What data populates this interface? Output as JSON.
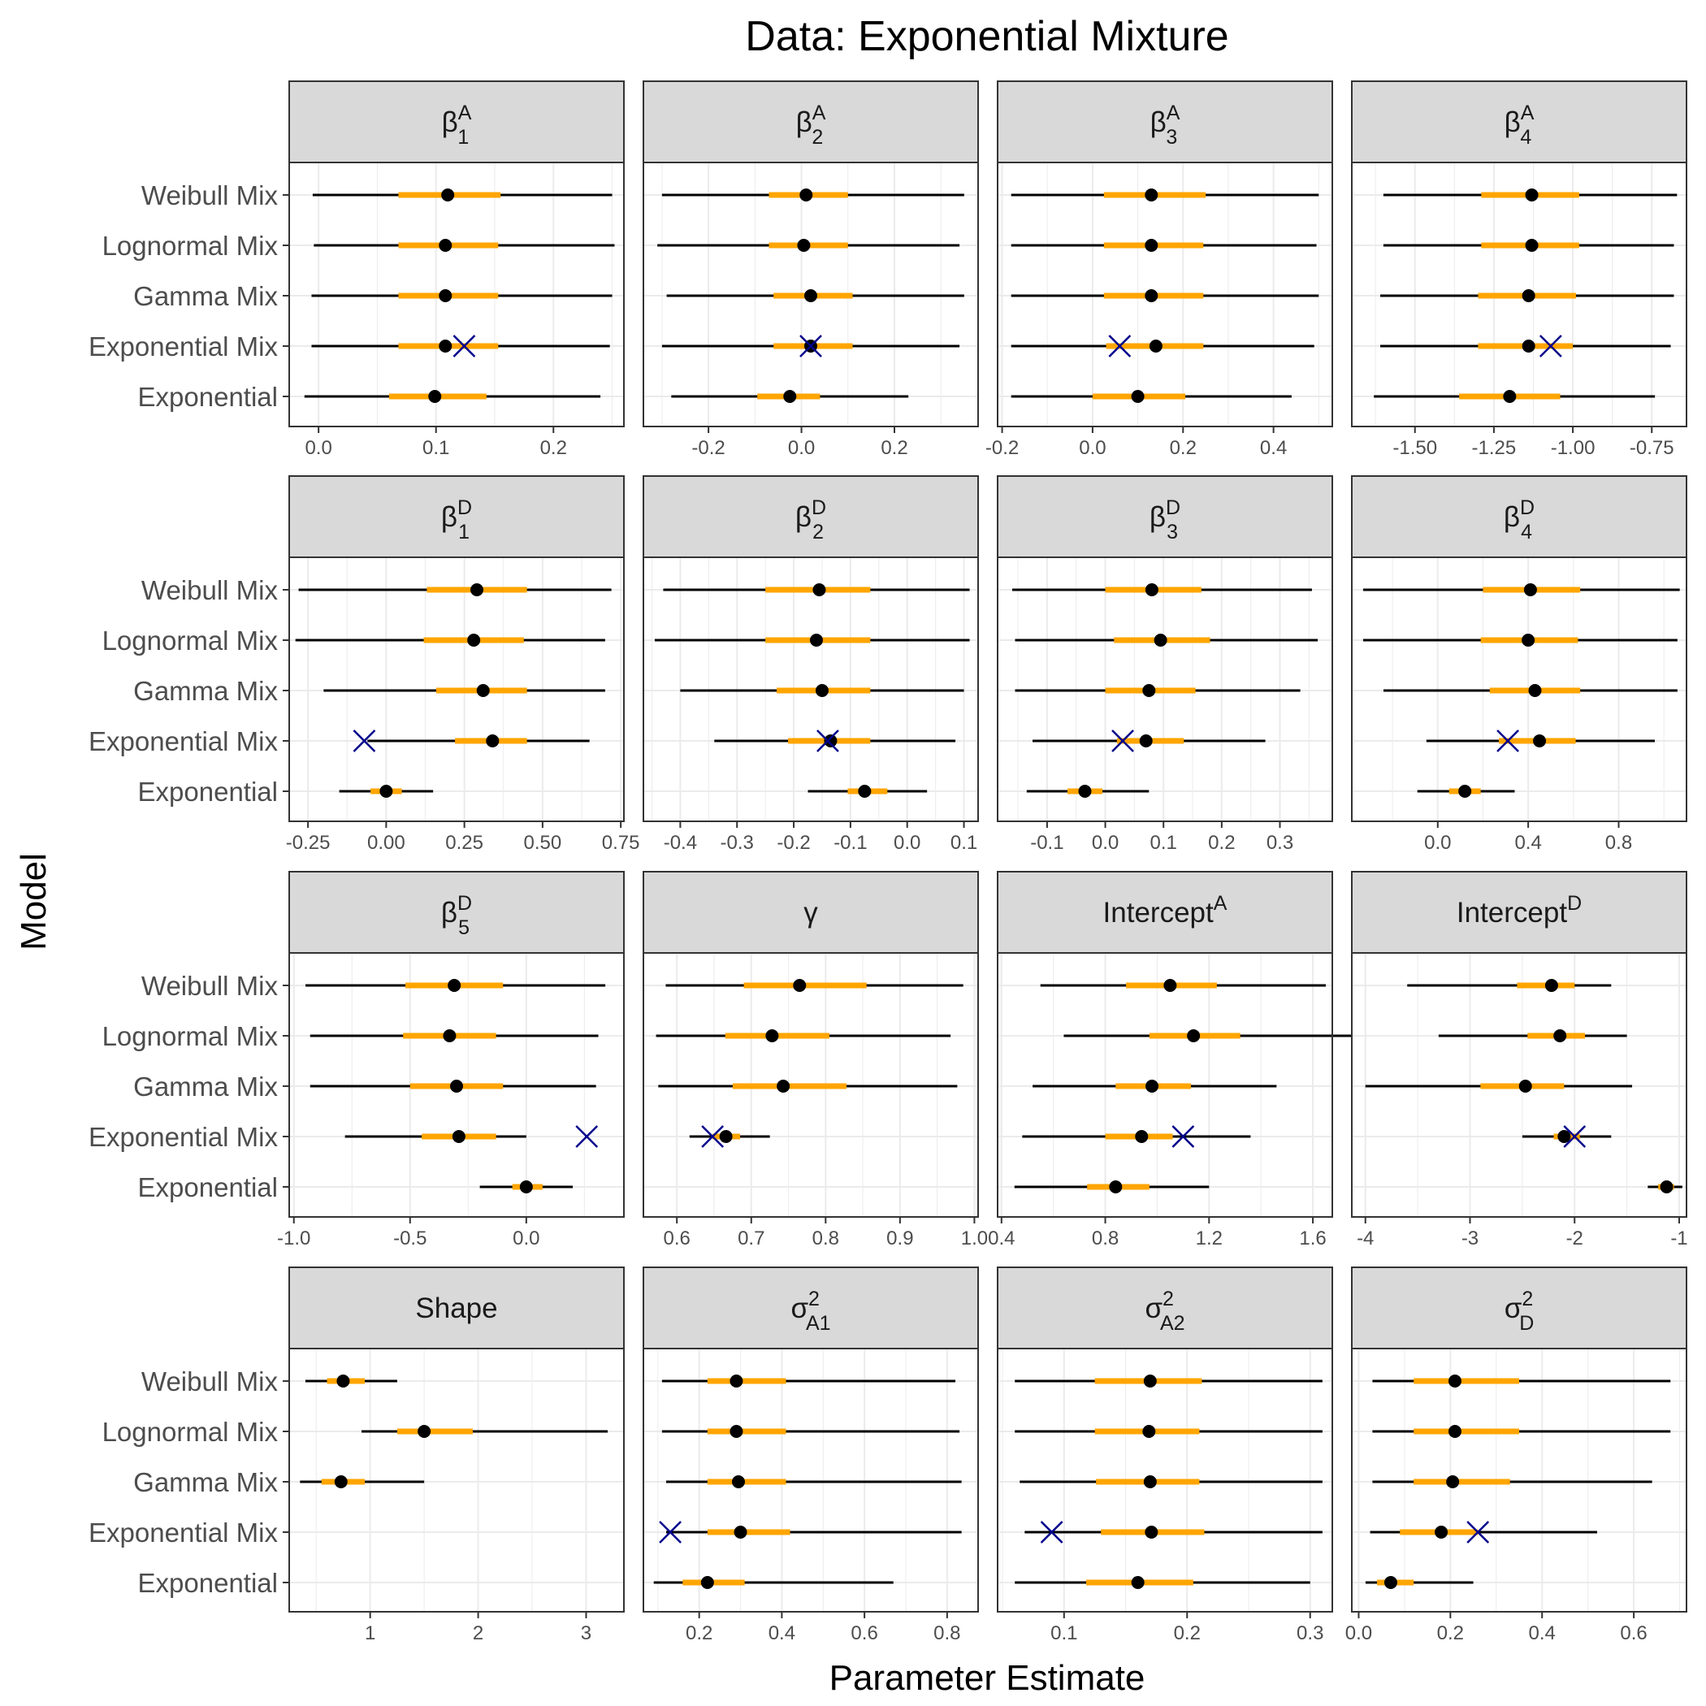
{
  "chart_data": {
    "type": "forest-plot facets",
    "title": "Data: Exponential Mixture",
    "xlabel": "Parameter Estimate",
    "ylabel": "Model",
    "models": [
      "Weibull Mix",
      "Lognormal Mix",
      "Gamma Mix",
      "Exponential Mix",
      "Exponential"
    ],
    "legend": "none",
    "grid": true,
    "colors": {
      "outer_interval": "#000000",
      "inner_interval": "#FFA500",
      "estimate": "#000000",
      "true_value": "#00008B",
      "strip_bg": "#D9D9D9"
    },
    "encoding": {
      "thin_black_line": "outer interval",
      "thick_orange_line": "inner interval",
      "dot": "estimate",
      "x_marker": "true value (Exponential Mix row)"
    },
    "panels": [
      {
        "label": {
          "main": "β",
          "sup": "A",
          "sub": "1"
        },
        "xlim": [
          -0.025,
          0.26
        ],
        "ticks": [
          "0.0",
          "0.1",
          "0.2"
        ],
        "rows": [
          [
            -0.005,
            0.068,
            0.11,
            0.155,
            0.25
          ],
          [
            -0.004,
            0.068,
            0.108,
            0.153,
            0.252
          ],
          [
            -0.006,
            0.068,
            0.108,
            0.153,
            0.25
          ],
          [
            -0.006,
            0.068,
            0.108,
            0.153,
            0.248
          ],
          [
            -0.012,
            0.06,
            0.099,
            0.143,
            0.24
          ]
        ],
        "true": 0.124
      },
      {
        "label": {
          "main": "β",
          "sup": "A",
          "sub": "2"
        },
        "xlim": [
          -0.34,
          0.38
        ],
        "ticks": [
          "-0.2",
          "0.0",
          "0.2"
        ],
        "rows": [
          [
            -0.3,
            -0.07,
            0.01,
            0.1,
            0.35
          ],
          [
            -0.31,
            -0.07,
            0.005,
            0.1,
            0.34
          ],
          [
            -0.29,
            -0.06,
            0.02,
            0.11,
            0.35
          ],
          [
            -0.3,
            -0.06,
            0.02,
            0.11,
            0.34
          ],
          [
            -0.28,
            -0.095,
            -0.025,
            0.04,
            0.23
          ]
        ],
        "true": 0.02
      },
      {
        "label": {
          "main": "β",
          "sup": "A",
          "sub": "3"
        },
        "xlim": [
          -0.21,
          0.53
        ],
        "ticks": [
          "-0.2",
          "0.0",
          "0.2",
          "0.4"
        ],
        "rows": [
          [
            -0.18,
            0.025,
            0.13,
            0.25,
            0.5
          ],
          [
            -0.18,
            0.025,
            0.13,
            0.245,
            0.495
          ],
          [
            -0.18,
            0.025,
            0.13,
            0.245,
            0.5
          ],
          [
            -0.18,
            0.03,
            0.14,
            0.245,
            0.49
          ],
          [
            -0.18,
            0,
            0.1,
            0.205,
            0.44
          ]
        ],
        "true": 0.06
      },
      {
        "label": {
          "main": "β",
          "sup": "A",
          "sub": "4"
        },
        "xlim": [
          -1.7,
          -0.64
        ],
        "ticks": [
          "-1.50",
          "-1.25",
          "-1.00",
          "-0.75"
        ],
        "rows": [
          [
            -1.6,
            -1.29,
            -1.13,
            -0.98,
            -0.67
          ],
          [
            -1.6,
            -1.29,
            -1.13,
            -0.98,
            -0.68
          ],
          [
            -1.61,
            -1.3,
            -1.14,
            -0.99,
            -0.68
          ],
          [
            -1.61,
            -1.3,
            -1.14,
            -1.0,
            -0.69
          ],
          [
            -1.63,
            -1.36,
            -1.2,
            -1.04,
            -0.74
          ]
        ],
        "true": -1.07
      },
      {
        "label": {
          "main": "β",
          "sup": "D",
          "sub": "1"
        },
        "xlim": [
          -0.31,
          0.76
        ],
        "ticks": [
          "-0.25",
          "0.00",
          "0.25",
          "0.50",
          "0.75"
        ],
        "rows": [
          [
            -0.28,
            0.13,
            0.29,
            0.45,
            0.72
          ],
          [
            -0.29,
            0.12,
            0.28,
            0.44,
            0.7
          ],
          [
            -0.2,
            0.16,
            0.31,
            0.45,
            0.7
          ],
          [
            -0.06,
            0.22,
            0.34,
            0.45,
            0.65
          ],
          [
            -0.15,
            -0.05,
            0.0,
            0.05,
            0.15
          ]
        ],
        "true": -0.07
      },
      {
        "label": {
          "main": "β",
          "sup": "D",
          "sub": "2"
        },
        "xlim": [
          -0.465,
          0.125
        ],
        "ticks": [
          "-0.4",
          "-0.3",
          "-0.2",
          "-0.1",
          "0.0",
          "0.1"
        ],
        "rows": [
          [
            -0.43,
            -0.25,
            -0.155,
            -0.065,
            0.11
          ],
          [
            -0.445,
            -0.25,
            -0.16,
            -0.065,
            0.11
          ],
          [
            -0.4,
            -0.23,
            -0.15,
            -0.065,
            0.1
          ],
          [
            -0.34,
            -0.21,
            -0.135,
            -0.065,
            0.085
          ],
          [
            -0.175,
            -0.105,
            -0.075,
            -0.035,
            0.035
          ]
        ],
        "true": -0.14
      },
      {
        "label": {
          "main": "β",
          "sup": "D",
          "sub": "3"
        },
        "xlim": [
          -0.185,
          0.39
        ],
        "ticks": [
          "-0.1",
          "0.0",
          "0.1",
          "0.2",
          "0.3"
        ],
        "rows": [
          [
            -0.16,
            0.0,
            0.08,
            0.165,
            0.355
          ],
          [
            -0.155,
            0.015,
            0.095,
            0.18,
            0.365
          ],
          [
            -0.155,
            0.0,
            0.075,
            0.155,
            0.335
          ],
          [
            -0.125,
            0.02,
            0.07,
            0.135,
            0.275
          ],
          [
            -0.135,
            -0.065,
            -0.035,
            -0.005,
            0.075
          ]
        ],
        "true": 0.03
      },
      {
        "label": {
          "main": "β",
          "sup": "D",
          "sub": "4"
        },
        "xlim": [
          -0.38,
          1.1
        ],
        "ticks": [
          "0.0",
          "0.4",
          "0.8"
        ],
        "rows": [
          [
            -0.33,
            0.2,
            0.41,
            0.63,
            1.07
          ],
          [
            -0.33,
            0.19,
            0.4,
            0.62,
            1.06
          ],
          [
            -0.24,
            0.23,
            0.43,
            0.63,
            1.06
          ],
          [
            -0.05,
            0.27,
            0.45,
            0.61,
            0.96
          ],
          [
            -0.09,
            0.05,
            0.12,
            0.19,
            0.34
          ]
        ],
        "true": 0.31
      },
      {
        "label": {
          "main": "β",
          "sup": "D",
          "sub": "5"
        },
        "xlim": [
          -1.02,
          0.42
        ],
        "ticks": [
          "-1.0",
          "-0.5",
          "0.0"
        ],
        "rows": [
          [
            -0.95,
            -0.52,
            -0.31,
            -0.1,
            0.34
          ],
          [
            -0.93,
            -0.53,
            -0.33,
            -0.13,
            0.31
          ],
          [
            -0.93,
            -0.5,
            -0.3,
            -0.1,
            0.3
          ],
          [
            -0.78,
            -0.45,
            -0.29,
            -0.13,
            0.0
          ],
          [
            -0.2,
            -0.06,
            0.0,
            0.07,
            0.2
          ]
        ],
        "true": 0.26
      },
      {
        "label": {
          "main": "γ",
          "sup": "",
          "sub": ""
        },
        "xlim": [
          0.555,
          1.005
        ],
        "ticks": [
          "0.6",
          "0.7",
          "0.8",
          "0.9",
          "1.0"
        ],
        "rows": [
          [
            0.585,
            0.69,
            0.765,
            0.855,
            0.985
          ],
          [
            0.572,
            0.665,
            0.728,
            0.805,
            0.968
          ],
          [
            0.575,
            0.675,
            0.743,
            0.828,
            0.977
          ],
          [
            0.617,
            0.648,
            0.666,
            0.685,
            0.725
          ],
          null
        ],
        "true": 0.648
      },
      {
        "label": {
          "main": "Intercept",
          "sup": "A",
          "sub": ""
        },
        "xlim": [
          0.385,
          1.675
        ],
        "ticks": [
          "0.4",
          "0.8",
          "1.2",
          "1.6"
        ],
        "rows": [
          [
            0.55,
            0.88,
            1.05,
            1.23,
            1.65
          ],
          [
            0.64,
            0.97,
            1.14,
            1.32,
            1.78
          ],
          [
            0.52,
            0.84,
            0.98,
            1.13,
            1.46
          ],
          [
            0.48,
            0.8,
            0.94,
            1.06,
            1.36
          ],
          [
            0.45,
            0.73,
            0.84,
            0.97,
            1.2
          ]
        ],
        "true": 1.1
      },
      {
        "label": {
          "main": "Intercept",
          "sup": "D",
          "sub": ""
        },
        "xlim": [
          -4.13,
          -0.93
        ],
        "ticks": [
          "-4",
          "-3",
          "-2",
          "-1"
        ],
        "rows": [
          [
            -3.6,
            -2.55,
            -2.22,
            -2.0,
            -1.65
          ],
          [
            -3.3,
            -2.45,
            -2.14,
            -1.9,
            -1.5
          ],
          [
            -4.0,
            -2.9,
            -2.47,
            -2.1,
            -1.45
          ],
          [
            -2.5,
            -2.2,
            -2.1,
            -1.95,
            -1.65
          ],
          [
            -1.3,
            -1.2,
            -1.12,
            -1.05,
            -0.97
          ]
        ],
        "true": -2.0
      },
      {
        "label": {
          "main": "Shape",
          "sup": "",
          "sub": ""
        },
        "xlim": [
          0.25,
          3.35
        ],
        "ticks": [
          "1",
          "2",
          "3"
        ],
        "rows": [
          [
            0.4,
            0.6,
            0.75,
            0.95,
            1.25
          ],
          [
            0.92,
            1.25,
            1.5,
            1.95,
            3.2
          ],
          [
            0.35,
            0.55,
            0.73,
            0.95,
            1.5
          ],
          null,
          null
        ],
        "true": null
      },
      {
        "label": {
          "main": "σ",
          "sup": "2",
          "sub": "A1"
        },
        "xlim": [
          0.065,
          0.875
        ],
        "ticks": [
          "0.2",
          "0.4",
          "0.6",
          "0.8"
        ],
        "rows": [
          [
            0.11,
            0.22,
            0.29,
            0.41,
            0.82
          ],
          [
            0.11,
            0.22,
            0.29,
            0.41,
            0.83
          ],
          [
            0.12,
            0.22,
            0.295,
            0.41,
            0.835
          ],
          [
            0.12,
            0.22,
            0.3,
            0.42,
            0.835
          ],
          [
            0.09,
            0.16,
            0.22,
            0.31,
            0.67
          ]
        ],
        "true": 0.13
      },
      {
        "label": {
          "main": "σ",
          "sup": "2",
          "sub": "A2"
        },
        "xlim": [
          0.046,
          0.318
        ],
        "ticks": [
          "0.1",
          "0.2",
          "0.3"
        ],
        "rows": [
          [
            0.06,
            0.125,
            0.17,
            0.212,
            0.31
          ],
          [
            0.06,
            0.125,
            0.169,
            0.21,
            0.31
          ],
          [
            0.064,
            0.126,
            0.17,
            0.21,
            0.31
          ],
          [
            0.068,
            0.13,
            0.171,
            0.214,
            0.31
          ],
          [
            0.06,
            0.118,
            0.16,
            0.205,
            0.3
          ]
        ],
        "true": 0.09
      },
      {
        "label": {
          "main": "σ",
          "sup": "2",
          "sub": "D"
        },
        "xlim": [
          -0.015,
          0.715
        ],
        "ticks": [
          "0.0",
          "0.2",
          "0.4",
          "0.6"
        ],
        "rows": [
          [
            0.03,
            0.12,
            0.21,
            0.35,
            0.68
          ],
          [
            0.03,
            0.12,
            0.21,
            0.35,
            0.68
          ],
          [
            0.03,
            0.12,
            0.205,
            0.33,
            0.64
          ],
          [
            0.025,
            0.09,
            0.18,
            0.26,
            0.52
          ],
          [
            0.015,
            0.04,
            0.07,
            0.12,
            0.25
          ]
        ],
        "true": 0.26
      }
    ]
  }
}
